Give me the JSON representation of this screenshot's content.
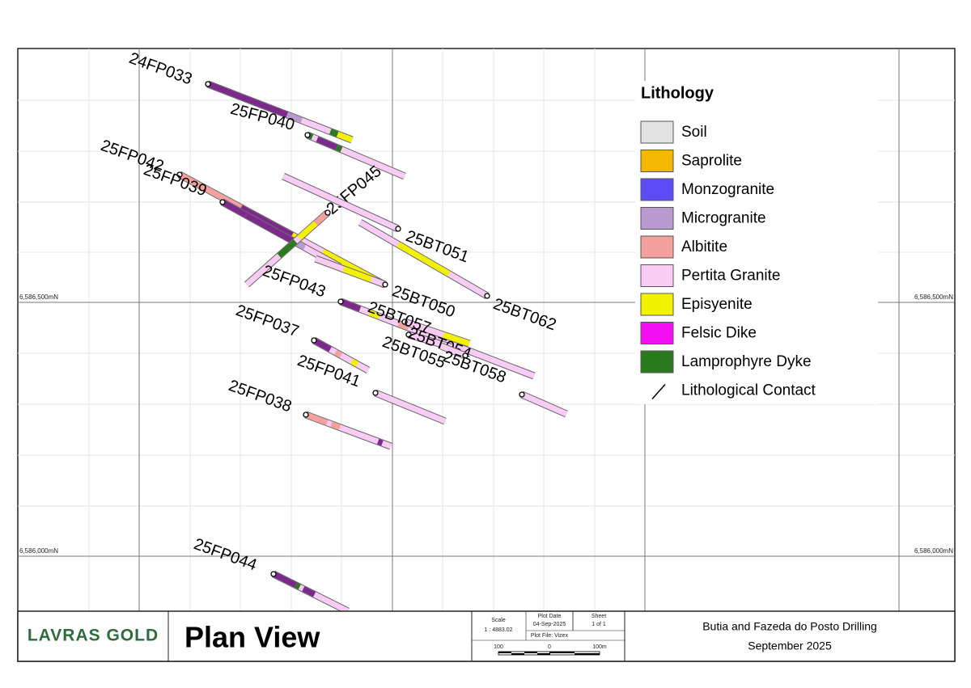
{
  "map": {
    "legend": {
      "title": "Lithology",
      "items": [
        "Soil",
        "Saprolite",
        "Monzogranite",
        "Microgranite",
        "Albitite",
        "Pertita Granite",
        "Episyenite",
        "Felsic Dike",
        "Lamprophyre Dyke",
        "Lithological Contact"
      ]
    },
    "holes": [
      "24FP033",
      "25FP040",
      "25FP042",
      "25FP039",
      "25FP045",
      "25BT051",
      "25FP043",
      "25BT050",
      "25BT062",
      "25BT057",
      "25BT054",
      "25FP037",
      "25BT055",
      "25BT058",
      "25FP041",
      "25FP038",
      "25FP044"
    ],
    "grid_labels_left": [
      "6,586,500mN",
      "6,586,000mN"
    ],
    "grid_labels_right": [
      "6,586,500mN",
      "6,586,000mN"
    ]
  },
  "title_block": {
    "logo": "LAVRAS GOLD",
    "title": "Plan View",
    "scale_label": "Scale",
    "scale": "1 : 4883.02",
    "plot_date_label": "Plot Date",
    "plot_date": "04-Sep-2025",
    "sheet_label": "Sheet",
    "sheet": "1 of 1",
    "plot_file": "Plot File: Vizex",
    "bar_labels": [
      "100",
      "0",
      "100m"
    ],
    "project": "Butia and Fazeda do Posto Drilling",
    "date": "September 2025"
  }
}
